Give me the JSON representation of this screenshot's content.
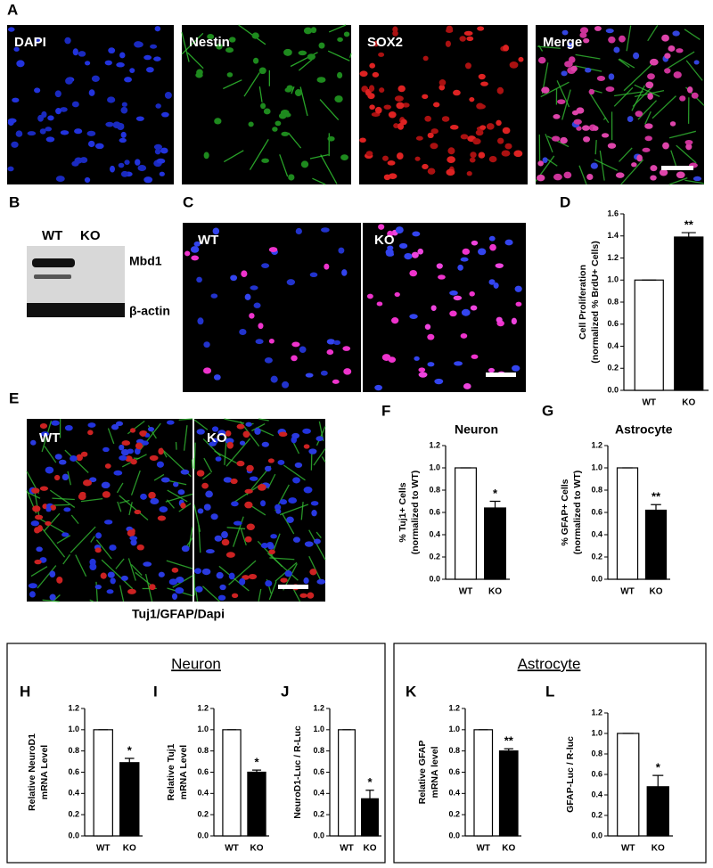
{
  "images": {
    "A": {
      "label": "A",
      "channels": [
        "DAPI",
        "Nestin",
        "SOX2",
        "Merge"
      ]
    },
    "B": {
      "label": "B",
      "lanes": [
        "WT",
        "KO"
      ],
      "bands": [
        "Mbd1",
        "β-actin"
      ]
    },
    "C": {
      "label": "C",
      "conditions": [
        "WT",
        "KO"
      ]
    },
    "E": {
      "label": "E",
      "conditions": [
        "WT",
        "KO"
      ],
      "caption": "Tuj1/GFAP/Dapi"
    }
  },
  "groups": [
    "Neuron",
    "Astrocyte"
  ],
  "chart_data": [
    {
      "type": "bar",
      "panel": "D",
      "ylabel": [
        "Cell Proliferation",
        "(normalized % BrdU+ Cells)"
      ],
      "categories": [
        "WT",
        "KO"
      ],
      "values": [
        1.0,
        1.39
      ],
      "errors": [
        0,
        0.04
      ],
      "annotations": [
        null,
        "**"
      ],
      "colors": [
        "#ffffff",
        "#000000"
      ],
      "ylim": [
        0,
        1.6
      ],
      "yticks": [
        {
          "value": 0,
          "label": "0.0"
        },
        {
          "value": 0.2,
          "label": "0.2"
        },
        {
          "value": 0.4,
          "label": "0.4"
        },
        {
          "value": 0.6,
          "label": "0.6"
        },
        {
          "value": 0.8,
          "label": "0.8"
        },
        {
          "value": 1,
          "label": "1.0"
        },
        {
          "value": 1.2,
          "label": "1.2"
        },
        {
          "value": 1.4,
          "label": "1.4"
        },
        {
          "value": 1.6,
          "label": "1.6"
        }
      ]
    },
    {
      "type": "bar",
      "panel": "F",
      "title": "Neuron",
      "ylabel": [
        "% Tuj1+ Cells",
        "(normalized to WT)"
      ],
      "categories": [
        "WT",
        "KO"
      ],
      "values": [
        1.0,
        0.64
      ],
      "errors": [
        0,
        0.06
      ],
      "annotations": [
        null,
        "*"
      ],
      "colors": [
        "#ffffff",
        "#000000"
      ],
      "ylim": [
        0,
        1.2
      ],
      "yticks": [
        {
          "value": 0,
          "label": "0.0"
        },
        {
          "value": 0.2,
          "label": "0.2"
        },
        {
          "value": 0.4,
          "label": "0.4"
        },
        {
          "value": 0.6,
          "label": "0.6"
        },
        {
          "value": 0.8,
          "label": "0.8"
        },
        {
          "value": 1,
          "label": "1.0"
        },
        {
          "value": 1.2,
          "label": "1.2"
        }
      ]
    },
    {
      "type": "bar",
      "panel": "G",
      "title": "Astrocyte",
      "ylabel": [
        "% GFAP+ Cells",
        "(normalized to WT)"
      ],
      "categories": [
        "WT",
        "KO"
      ],
      "values": [
        1.0,
        0.62
      ],
      "errors": [
        0,
        0.05
      ],
      "annotations": [
        null,
        "**"
      ],
      "colors": [
        "#ffffff",
        "#000000"
      ],
      "ylim": [
        0,
        1.2
      ],
      "yticks": [
        {
          "value": 0,
          "label": "0.0"
        },
        {
          "value": 0.2,
          "label": "0.2"
        },
        {
          "value": 0.4,
          "label": "0.4"
        },
        {
          "value": 0.6,
          "label": "0.6"
        },
        {
          "value": 0.8,
          "label": "0.8"
        },
        {
          "value": 1,
          "label": "1.0"
        },
        {
          "value": 1.2,
          "label": "1.2"
        }
      ]
    },
    {
      "type": "bar",
      "panel": "H",
      "ylabel": [
        "Relative NeuroD1",
        "mRNA Level"
      ],
      "categories": [
        "WT",
        "KO"
      ],
      "values": [
        1.0,
        0.69
      ],
      "errors": [
        0,
        0.04
      ],
      "annotations": [
        null,
        "*"
      ],
      "colors": [
        "#ffffff",
        "#000000"
      ],
      "ylim": [
        0,
        1.2
      ],
      "yticks": [
        {
          "value": 0,
          "label": "0.0"
        },
        {
          "value": 0.2,
          "label": "0.2"
        },
        {
          "value": 0.4,
          "label": "0.4"
        },
        {
          "value": 0.6,
          "label": "0.6"
        },
        {
          "value": 0.8,
          "label": "0.8"
        },
        {
          "value": 1,
          "label": "1.0"
        },
        {
          "value": 1.2,
          "label": "1.2"
        }
      ]
    },
    {
      "type": "bar",
      "panel": "I",
      "ylabel": [
        "Relative Tuj1",
        "mRNA Level"
      ],
      "categories": [
        "WT",
        "KO"
      ],
      "values": [
        1.0,
        0.6
      ],
      "errors": [
        0,
        0.02
      ],
      "annotations": [
        null,
        "*"
      ],
      "colors": [
        "#ffffff",
        "#000000"
      ],
      "ylim": [
        0,
        1.2
      ],
      "yticks": [
        {
          "value": 0,
          "label": "0.0"
        },
        {
          "value": 0.2,
          "label": "0.2"
        },
        {
          "value": 0.4,
          "label": "0.4"
        },
        {
          "value": 0.6,
          "label": "0.6"
        },
        {
          "value": 0.8,
          "label": "0.8"
        },
        {
          "value": 1,
          "label": "1.0"
        },
        {
          "value": 1.2,
          "label": "1.2"
        }
      ]
    },
    {
      "type": "bar",
      "panel": "J",
      "ylabel": [
        "NeuroD1-Luc / R-Luc"
      ],
      "categories": [
        "WT",
        "KO"
      ],
      "values": [
        1.0,
        0.35
      ],
      "errors": [
        0,
        0.08
      ],
      "annotations": [
        null,
        "*"
      ],
      "colors": [
        "#ffffff",
        "#000000"
      ],
      "ylim": [
        0,
        1.2
      ],
      "yticks": [
        {
          "value": 0,
          "label": "0.0"
        },
        {
          "value": 0.2,
          "label": "0.2"
        },
        {
          "value": 0.4,
          "label": "0.4"
        },
        {
          "value": 0.6,
          "label": "0.6"
        },
        {
          "value": 0.8,
          "label": "0.8"
        },
        {
          "value": 1,
          "label": "1.0"
        },
        {
          "value": 1.2,
          "label": "1.2"
        }
      ]
    },
    {
      "type": "bar",
      "panel": "K",
      "ylabel": [
        "Relative GFAP",
        "mRNA level"
      ],
      "categories": [
        "WT",
        "KO"
      ],
      "values": [
        1.0,
        0.8
      ],
      "errors": [
        0,
        0.02
      ],
      "annotations": [
        null,
        "**"
      ],
      "colors": [
        "#ffffff",
        "#000000"
      ],
      "ylim": [
        0,
        1.2
      ],
      "yticks": [
        {
          "value": 0,
          "label": "0.0"
        },
        {
          "value": 0.2,
          "label": "0.2"
        },
        {
          "value": 0.4,
          "label": "0.4"
        },
        {
          "value": 0.6,
          "label": "0.6"
        },
        {
          "value": 0.8,
          "label": "0.8"
        },
        {
          "value": 1,
          "label": "1.0"
        },
        {
          "value": 1.2,
          "label": "1.2"
        }
      ]
    },
    {
      "type": "bar",
      "panel": "L",
      "ylabel": [
        "GFAP-Luc / R-luc"
      ],
      "categories": [
        "WT",
        "KO"
      ],
      "values": [
        1.0,
        0.48
      ],
      "errors": [
        0,
        0.11
      ],
      "annotations": [
        null,
        "*"
      ],
      "colors": [
        "#ffffff",
        "#000000"
      ],
      "ylim": [
        0,
        1.2
      ],
      "yticks": [
        {
          "value": 0,
          "label": "0.0"
        },
        {
          "value": 0.2,
          "label": "0.2"
        },
        {
          "value": 0.4,
          "label": "0.4"
        },
        {
          "value": 0.6,
          "label": "0.6"
        },
        {
          "value": 0.8,
          "label": "0.8"
        },
        {
          "value": 1,
          "label": "1.0"
        },
        {
          "value": 1.2,
          "label": "1.2"
        }
      ]
    }
  ]
}
